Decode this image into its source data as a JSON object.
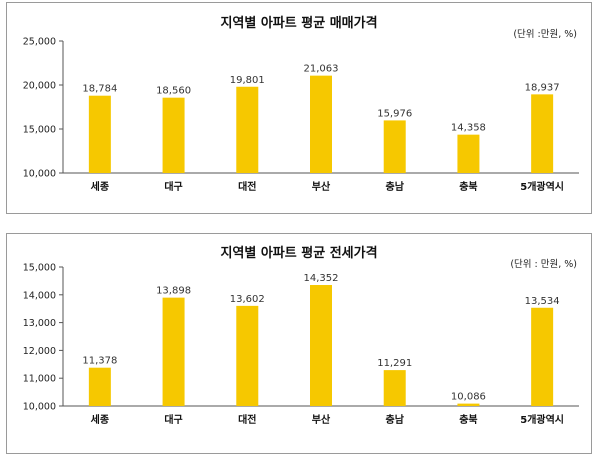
{
  "chart_data": [
    {
      "type": "bar",
      "title": "지역별 아파트 평균 매매가격",
      "unit_note": "(단위 :만원, %)",
      "categories": [
        "세종",
        "대구",
        "대전",
        "부산",
        "충남",
        "충북",
        "5개광역시"
      ],
      "values": [
        18784,
        18560,
        19801,
        21063,
        15976,
        14358,
        18937
      ],
      "value_labels": [
        "18,784",
        "18,560",
        "19,801",
        "21,063",
        "15,976",
        "14,358",
        "18,937"
      ],
      "ylim": [
        10000,
        25000
      ],
      "yticks": [
        10000,
        15000,
        20000,
        25000
      ],
      "ytick_labels": [
        "10,000",
        "15,000",
        "20,000",
        "25,000"
      ],
      "grid": false,
      "colors": {
        "bar": "#f6c800",
        "axis": "#555555"
      }
    },
    {
      "type": "bar",
      "title": "지역별 아파트 평균 전세가격",
      "unit_note": "(단위 : 만원, %)",
      "categories": [
        "세종",
        "대구",
        "대전",
        "부산",
        "충남",
        "충북",
        "5개광역시"
      ],
      "values": [
        11378,
        13898,
        13602,
        14352,
        11291,
        10086,
        13534
      ],
      "value_labels": [
        "11,378",
        "13,898",
        "13,602",
        "14,352",
        "11,291",
        "10,086",
        "13,534"
      ],
      "ylim": [
        10000,
        15000
      ],
      "yticks": [
        10000,
        11000,
        12000,
        13000,
        14000,
        15000
      ],
      "ytick_labels": [
        "10,000",
        "11,000",
        "12,000",
        "13,000",
        "14,000",
        "15,000"
      ],
      "grid": false,
      "colors": {
        "bar": "#f6c800",
        "axis": "#555555"
      }
    }
  ]
}
